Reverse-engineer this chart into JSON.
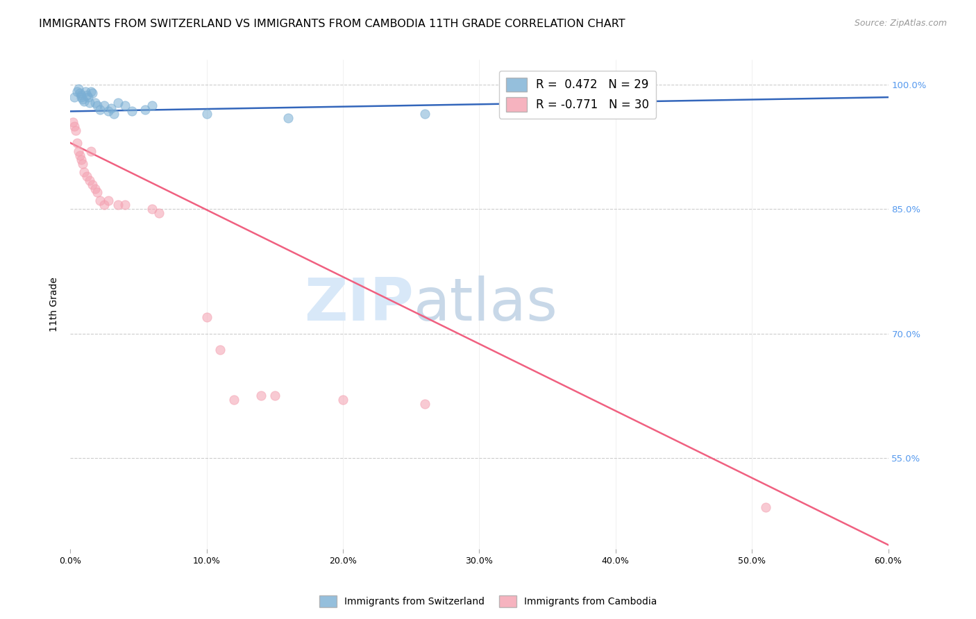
{
  "title": "IMMIGRANTS FROM SWITZERLAND VS IMMIGRANTS FROM CAMBODIA 11TH GRADE CORRELATION CHART",
  "source": "Source: ZipAtlas.com",
  "ylabel": "11th Grade",
  "watermark_top": "ZIP",
  "watermark_bottom": "atlas",
  "xlim": [
    0.0,
    0.6
  ],
  "ylim": [
    0.44,
    1.03
  ],
  "x_tick_positions": [
    0.0,
    0.1,
    0.2,
    0.3,
    0.4,
    0.5,
    0.6
  ],
  "x_tick_labels": [
    "0.0%",
    "10.0%",
    "20.0%",
    "30.0%",
    "40.0%",
    "50.0%",
    "60.0%"
  ],
  "y_tick_positions": [
    0.55,
    0.7,
    0.85,
    1.0
  ],
  "y_tick_labels_right": [
    "55.0%",
    "70.0%",
    "85.0%",
    "100.0%"
  ],
  "legend_R_blue": "R =  0.472",
  "legend_N_blue": "N = 29",
  "legend_R_pink": "R = -0.771",
  "legend_N_pink": "N = 30",
  "blue_scatter_x": [
    0.003,
    0.005,
    0.006,
    0.007,
    0.008,
    0.008,
    0.009,
    0.01,
    0.011,
    0.012,
    0.013,
    0.014,
    0.015,
    0.016,
    0.018,
    0.02,
    0.022,
    0.025,
    0.028,
    0.03,
    0.032,
    0.035,
    0.04,
    0.045,
    0.055,
    0.06,
    0.1,
    0.16,
    0.26
  ],
  "blue_scatter_y": [
    0.985,
    0.992,
    0.995,
    0.99,
    0.988,
    0.985,
    0.983,
    0.98,
    0.992,
    0.988,
    0.985,
    0.978,
    0.992,
    0.99,
    0.978,
    0.975,
    0.97,
    0.975,
    0.968,
    0.972,
    0.965,
    0.978,
    0.975,
    0.968,
    0.97,
    0.975,
    0.965,
    0.96,
    0.965
  ],
  "pink_scatter_x": [
    0.002,
    0.003,
    0.004,
    0.005,
    0.006,
    0.007,
    0.008,
    0.009,
    0.01,
    0.012,
    0.014,
    0.015,
    0.016,
    0.018,
    0.02,
    0.022,
    0.025,
    0.028,
    0.035,
    0.04,
    0.06,
    0.065,
    0.1,
    0.11,
    0.12,
    0.14,
    0.15,
    0.2,
    0.26,
    0.51
  ],
  "pink_scatter_y": [
    0.955,
    0.95,
    0.945,
    0.93,
    0.92,
    0.915,
    0.91,
    0.905,
    0.895,
    0.89,
    0.885,
    0.92,
    0.88,
    0.875,
    0.87,
    0.86,
    0.855,
    0.86,
    0.855,
    0.855,
    0.85,
    0.845,
    0.72,
    0.68,
    0.62,
    0.625,
    0.625,
    0.62,
    0.615,
    0.49
  ],
  "blue_line_x": [
    0.0,
    0.6
  ],
  "blue_line_y": [
    0.968,
    0.985
  ],
  "pink_line_x": [
    0.0,
    0.6
  ],
  "pink_line_y": [
    0.93,
    0.445
  ],
  "blue_color": "#7BAFD4",
  "pink_color": "#F4A0B0",
  "blue_line_color": "#3366BB",
  "pink_line_color": "#F06080",
  "background_color": "#FFFFFF",
  "grid_color": "#CCCCCC",
  "title_fontsize": 11.5,
  "axis_label_fontsize": 10,
  "tick_fontsize": 9,
  "legend_fontsize": 12,
  "right_tick_color": "#5599EE",
  "watermark_color": "#D8E8F8",
  "scatter_size": 90,
  "scatter_alpha": 0.55,
  "line_width": 1.8
}
